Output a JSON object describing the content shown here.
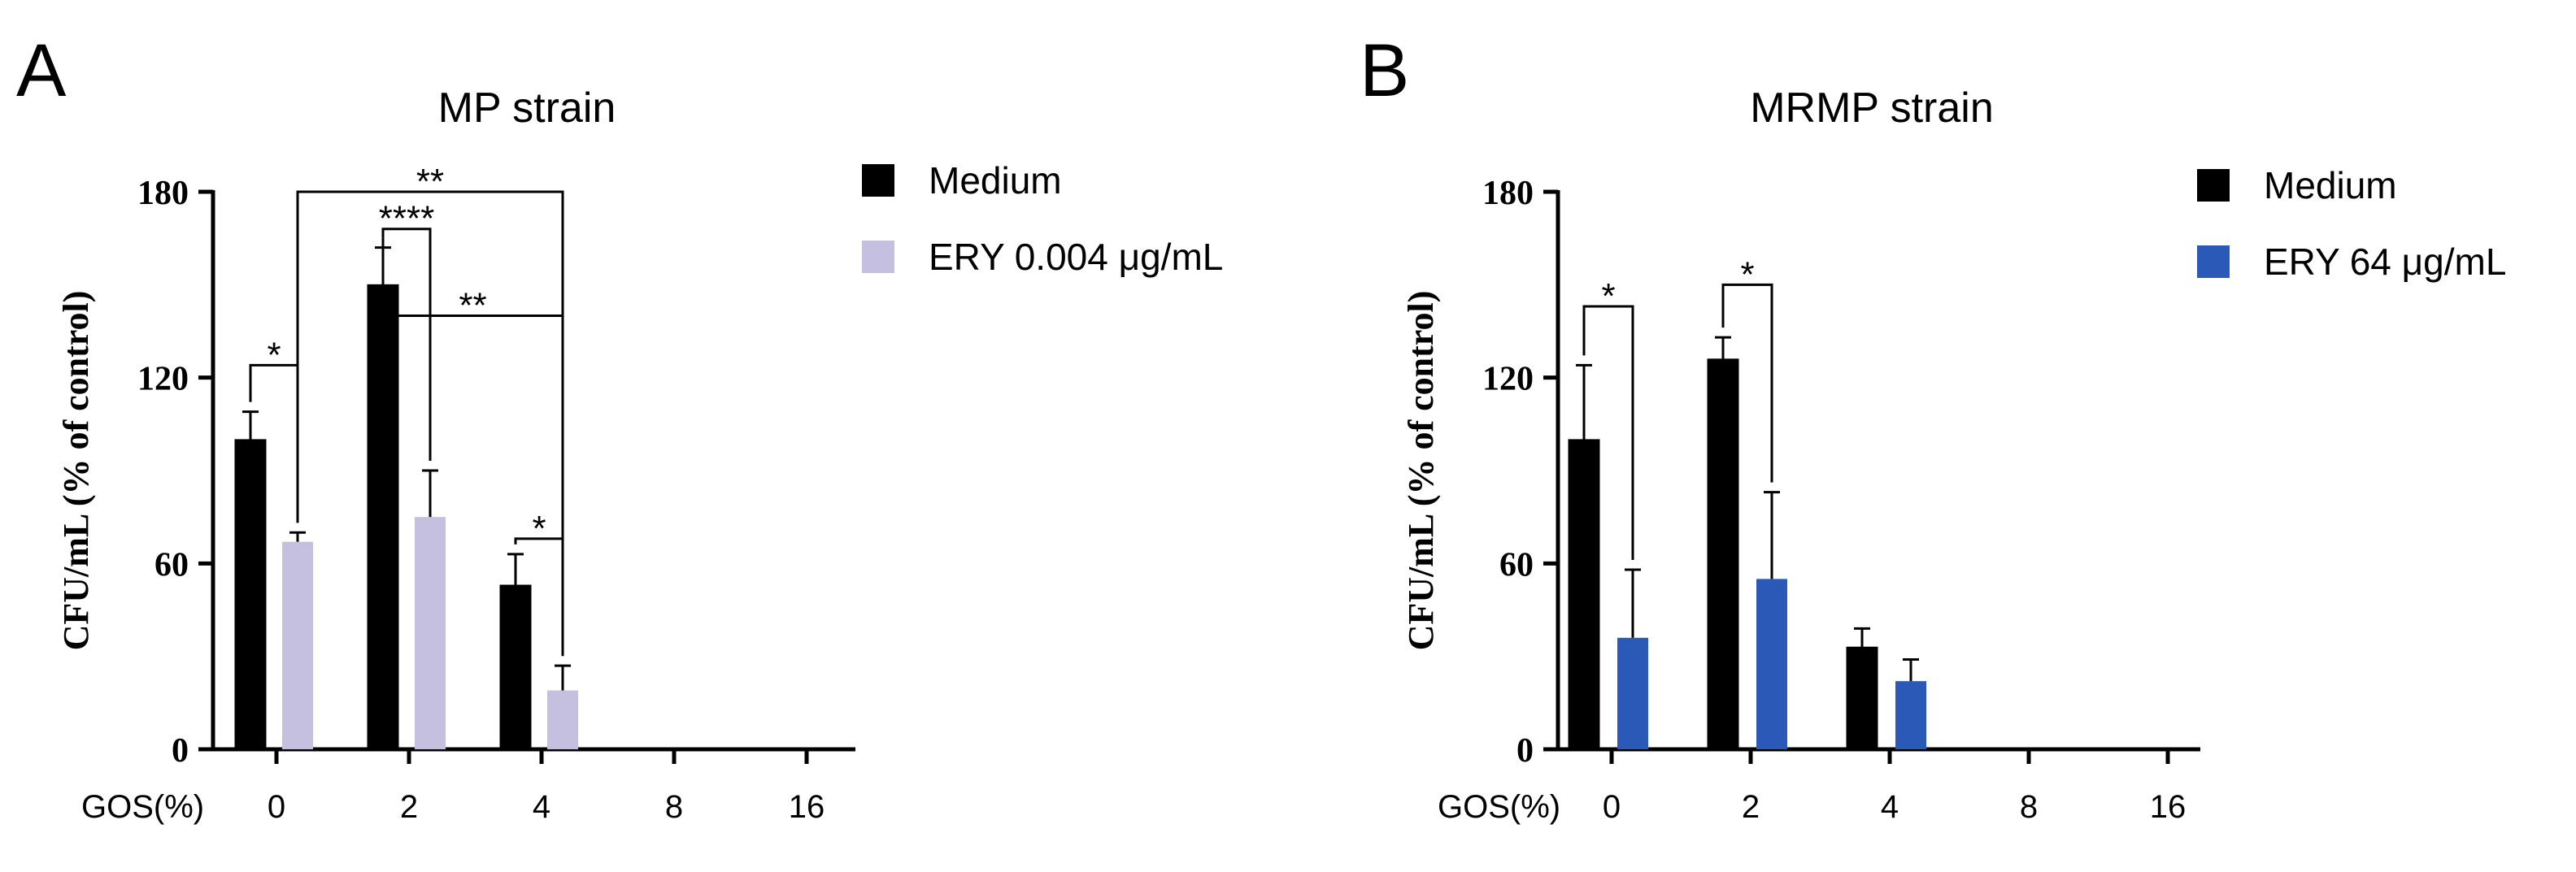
{
  "chart_data": [
    {
      "type": "bar",
      "panel": "A",
      "title": "MP strain",
      "ylabel": "CFU/mL (% of control)",
      "x_axis_name": "GOS(%)",
      "categories": [
        "0",
        "2",
        "4",
        "8",
        "16"
      ],
      "ylim": [
        0,
        180
      ],
      "yticks": [
        0,
        60,
        120,
        180
      ],
      "legend_position": "top-right",
      "series": [
        {
          "name": "Medium",
          "color": "#000000",
          "values": [
            100,
            150,
            53,
            0,
            0
          ],
          "errors": [
            9,
            12,
            10,
            0,
            0
          ]
        },
        {
          "name": "ERY 0.004 μg/mL",
          "color": "#c5bfe0",
          "values": [
            67,
            75,
            19,
            0,
            0
          ],
          "errors": [
            3,
            15,
            8,
            0,
            0
          ]
        }
      ],
      "significance": [
        {
          "label": "*",
          "from": [
            0,
            0
          ],
          "to": [
            0,
            1
          ],
          "level": 124
        },
        {
          "label": "****",
          "from": [
            1,
            0
          ],
          "to": [
            1,
            1
          ],
          "level": 168
        },
        {
          "label": "*",
          "from": [
            2,
            0
          ],
          "to": [
            2,
            1
          ],
          "level": 68
        },
        {
          "label": "**",
          "from": [
            1,
            0
          ],
          "to": [
            2,
            1
          ],
          "level": 140
        },
        {
          "label": "**",
          "from": [
            0,
            1
          ],
          "to": [
            2,
            1
          ],
          "level": 180
        }
      ]
    },
    {
      "type": "bar",
      "panel": "B",
      "title": "MRMP strain",
      "ylabel": "CFU/mL (% of control)",
      "x_axis_name": "GOS(%)",
      "categories": [
        "0",
        "2",
        "4",
        "8",
        "16"
      ],
      "ylim": [
        0,
        180
      ],
      "yticks": [
        0,
        60,
        120,
        180
      ],
      "legend_position": "top-right",
      "series": [
        {
          "name": "Medium",
          "color": "#000000",
          "values": [
            100,
            126,
            33,
            0,
            0
          ],
          "errors": [
            24,
            7,
            6,
            0,
            0
          ]
        },
        {
          "name": "ERY 64 μg/mL",
          "color": "#2a59b8",
          "values": [
            36,
            55,
            22,
            0,
            0
          ],
          "errors": [
            22,
            28,
            7,
            0,
            0
          ]
        }
      ],
      "significance": [
        {
          "label": "*",
          "from": [
            0,
            0
          ],
          "to": [
            0,
            1
          ],
          "level": 143
        },
        {
          "label": "*",
          "from": [
            1,
            0
          ],
          "to": [
            1,
            1
          ],
          "level": 150
        }
      ]
    }
  ]
}
